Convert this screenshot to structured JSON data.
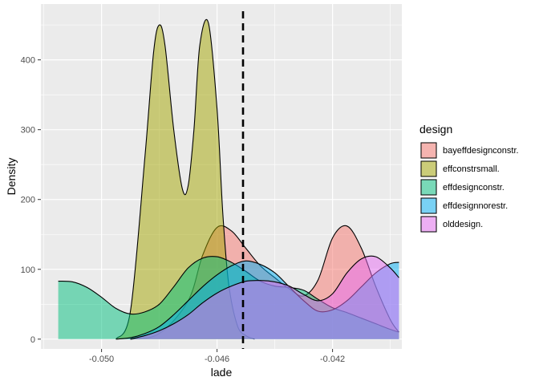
{
  "chart_data": {
    "type": "area",
    "subtype": "density",
    "xlabel": "lade",
    "ylabel": "Density",
    "xlim": [
      -0.0521,
      -0.0396
    ],
    "ylim": [
      -14,
      480
    ],
    "x_ticks": [
      -0.05,
      -0.046,
      -0.042
    ],
    "x_tick_labels": [
      "-0.050",
      "-0.046",
      "-0.042"
    ],
    "x_minor_ticks": [
      -0.052,
      -0.048,
      -0.044,
      -0.04
    ],
    "y_ticks": [
      0,
      100,
      200,
      300,
      400
    ],
    "y_tick_labels": [
      "0",
      "100",
      "200",
      "300",
      "400"
    ],
    "y_minor_ticks": [
      50,
      150,
      250,
      350,
      450
    ],
    "grid": true,
    "legend": {
      "title": "design",
      "position": "right"
    },
    "vline": {
      "x": -0.0451,
      "style": "dashed",
      "color": "#000000"
    },
    "fill_opacity": 0.5,
    "series": [
      {
        "name": "bayeffdesignconstr.",
        "color": "#F8766D",
        "x": [
          -0.049,
          -0.048,
          -0.047,
          -0.0465,
          -0.046,
          -0.0455,
          -0.045,
          -0.0445,
          -0.044,
          -0.0435,
          -0.043,
          -0.0425,
          -0.042,
          -0.0415,
          -0.041,
          -0.0405,
          -0.04,
          -0.0397
        ],
        "y": [
          0,
          8,
          55,
          120,
          160,
          155,
          130,
          105,
          88,
          72,
          62,
          85,
          145,
          162,
          130,
          75,
          28,
          10
        ]
      },
      {
        "name": "effconstrsmall.",
        "color": "#A3A500",
        "x": [
          -0.0495,
          -0.049,
          -0.0485,
          -0.0482,
          -0.048,
          -0.0478,
          -0.0475,
          -0.0472,
          -0.047,
          -0.0468,
          -0.0466,
          -0.0463,
          -0.046,
          -0.0458,
          -0.0456,
          -0.0453,
          -0.045,
          -0.0447
        ],
        "y": [
          0,
          40,
          260,
          410,
          450,
          420,
          300,
          215,
          220,
          300,
          420,
          453,
          330,
          180,
          80,
          20,
          5,
          0
        ]
      },
      {
        "name": "effdesignconstr.",
        "color": "#00BF7D",
        "x": [
          -0.0515,
          -0.051,
          -0.0505,
          -0.05,
          -0.0495,
          -0.049,
          -0.0485,
          -0.048,
          -0.0475,
          -0.047,
          -0.0465,
          -0.046,
          -0.0455,
          -0.045,
          -0.0445,
          -0.044,
          -0.0435,
          -0.043,
          -0.0425,
          -0.042,
          -0.0415,
          -0.041,
          -0.0405,
          -0.04,
          -0.0397
        ],
        "y": [
          83,
          82,
          74,
          60,
          44,
          36,
          39,
          50,
          75,
          102,
          116,
          118,
          110,
          97,
          83,
          76,
          74,
          70,
          57,
          45,
          38,
          30,
          22,
          14,
          10
        ]
      },
      {
        "name": "effdesignnorestr.",
        "color": "#00B0F6",
        "x": [
          -0.0495,
          -0.049,
          -0.0485,
          -0.048,
          -0.0475,
          -0.047,
          -0.0465,
          -0.046,
          -0.0455,
          -0.045,
          -0.0445,
          -0.044,
          -0.0435,
          -0.043,
          -0.0425,
          -0.042,
          -0.0415,
          -0.041,
          -0.0405,
          -0.04,
          -0.0397
        ],
        "y": [
          0,
          2,
          8,
          18,
          35,
          55,
          75,
          92,
          105,
          112,
          107,
          95,
          75,
          55,
          40,
          42,
          55,
          75,
          95,
          108,
          110
        ]
      },
      {
        "name": "olddesign.",
        "color": "#E76BF3",
        "x": [
          -0.049,
          -0.0485,
          -0.048,
          -0.0475,
          -0.047,
          -0.0465,
          -0.046,
          -0.0455,
          -0.045,
          -0.0445,
          -0.044,
          -0.0435,
          -0.043,
          -0.0425,
          -0.042,
          -0.0415,
          -0.041,
          -0.0405,
          -0.04,
          -0.0397
        ],
        "y": [
          0,
          5,
          12,
          22,
          35,
          52,
          66,
          76,
          83,
          84,
          82,
          76,
          64,
          55,
          65,
          95,
          115,
          118,
          102,
          88
        ]
      }
    ]
  }
}
